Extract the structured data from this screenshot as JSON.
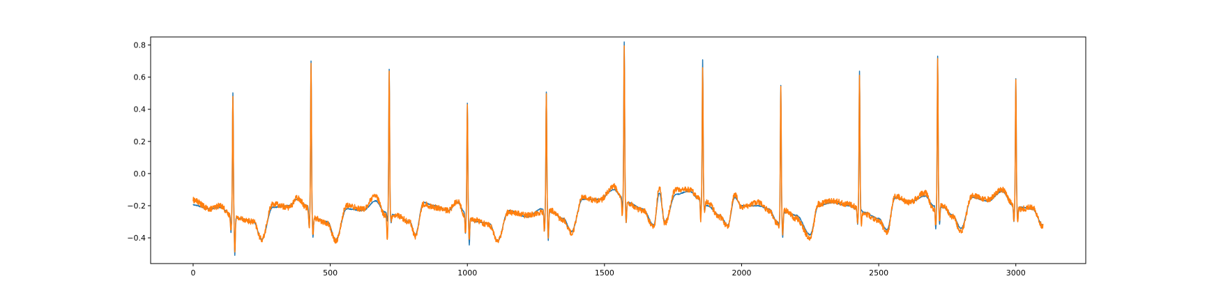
{
  "chart_data": {
    "type": "line",
    "title": "",
    "xlabel": "",
    "ylabel": "",
    "xlim": [
      -155,
      3255
    ],
    "ylim": [
      -0.56,
      0.85
    ],
    "xticks": [
      0,
      500,
      1000,
      1500,
      2000,
      2500,
      3000
    ],
    "xtick_labels": [
      "0",
      "500",
      "1000",
      "1500",
      "2000",
      "2500",
      "3000"
    ],
    "yticks": [
      -0.4,
      -0.2,
      0.0,
      0.2,
      0.4,
      0.6,
      0.8
    ],
    "ytick_labels": [
      "−0.4",
      "−0.2",
      "0.0",
      "0.2",
      "0.4",
      "0.6",
      "0.8"
    ],
    "grid": false,
    "legend": "none",
    "n_samples": 3100,
    "series": [
      {
        "color": "#1f77b4",
        "noise": 0.003,
        "peaks": [
          {
            "x": 145,
            "r": 0.5,
            "q": -0.37,
            "s": -0.5
          },
          {
            "x": 430,
            "r": 0.7,
            "q": -0.36,
            "s": -0.37
          },
          {
            "x": 715,
            "r": 0.65,
            "q": -0.3,
            "s": -0.3
          },
          {
            "x": 1000,
            "r": 0.44,
            "q": -0.38,
            "s": -0.43
          },
          {
            "x": 1288,
            "r": 0.51,
            "q": -0.36,
            "s": -0.41
          },
          {
            "x": 1572,
            "r": 0.82,
            "q": -0.23,
            "s": -0.29
          },
          {
            "x": 1858,
            "r": 0.71,
            "q": -0.27,
            "s": -0.22
          },
          {
            "x": 2143,
            "r": 0.55,
            "q": -0.31,
            "s": -0.42
          },
          {
            "x": 2430,
            "r": 0.64,
            "q": -0.32,
            "s": -0.22
          },
          {
            "x": 2715,
            "r": 0.73,
            "q": -0.35,
            "s": -0.31
          },
          {
            "x": 3000,
            "r": 0.59,
            "q": -0.3,
            "s": -0.29
          }
        ],
        "baseline": [
          [
            0,
            -0.195
          ],
          [
            60,
            -0.22
          ],
          [
            100,
            -0.21
          ],
          [
            135,
            -0.25
          ],
          [
            170,
            -0.28
          ],
          [
            220,
            -0.3
          ],
          [
            250,
            -0.41
          ],
          [
            290,
            -0.21
          ],
          [
            350,
            -0.2
          ],
          [
            380,
            -0.16
          ],
          [
            415,
            -0.2
          ],
          [
            445,
            -0.28
          ],
          [
            490,
            -0.3
          ],
          [
            520,
            -0.41
          ],
          [
            560,
            -0.22
          ],
          [
            620,
            -0.23
          ],
          [
            665,
            -0.17
          ],
          [
            700,
            -0.24
          ],
          [
            740,
            -0.26
          ],
          [
            790,
            -0.3
          ],
          [
            810,
            -0.38
          ],
          [
            840,
            -0.18
          ],
          [
            880,
            -0.2
          ],
          [
            930,
            -0.23
          ],
          [
            965,
            -0.18
          ],
          [
            990,
            -0.24
          ],
          [
            1030,
            -0.3
          ],
          [
            1080,
            -0.31
          ],
          [
            1110,
            -0.42
          ],
          [
            1150,
            -0.23
          ],
          [
            1220,
            -0.27
          ],
          [
            1270,
            -0.22
          ],
          [
            1305,
            -0.24
          ],
          [
            1350,
            -0.28
          ],
          [
            1380,
            -0.36
          ],
          [
            1420,
            -0.16
          ],
          [
            1480,
            -0.16
          ],
          [
            1535,
            -0.1
          ],
          [
            1560,
            -0.14
          ],
          [
            1585,
            -0.18
          ],
          [
            1640,
            -0.22
          ],
          [
            1680,
            -0.32
          ],
          [
            1700,
            -0.12
          ],
          [
            1720,
            -0.3
          ],
          [
            1760,
            -0.13
          ],
          [
            1810,
            -0.11
          ],
          [
            1845,
            -0.16
          ],
          [
            1875,
            -0.2
          ],
          [
            1920,
            -0.26
          ],
          [
            1950,
            -0.32
          ],
          [
            1975,
            -0.15
          ],
          [
            2000,
            -0.2
          ],
          [
            2060,
            -0.2
          ],
          [
            2100,
            -0.22
          ],
          [
            2130,
            -0.3
          ],
          [
            2160,
            -0.24
          ],
          [
            2200,
            -0.26
          ],
          [
            2250,
            -0.38
          ],
          [
            2280,
            -0.2
          ],
          [
            2330,
            -0.18
          ],
          [
            2390,
            -0.2
          ],
          [
            2420,
            -0.22
          ],
          [
            2445,
            -0.24
          ],
          [
            2500,
            -0.28
          ],
          [
            2530,
            -0.35
          ],
          [
            2560,
            -0.15
          ],
          [
            2610,
            -0.18
          ],
          [
            2670,
            -0.14
          ],
          [
            2700,
            -0.2
          ],
          [
            2735,
            -0.21
          ],
          [
            2770,
            -0.26
          ],
          [
            2800,
            -0.34
          ],
          [
            2840,
            -0.15
          ],
          [
            2900,
            -0.17
          ],
          [
            2950,
            -0.11
          ],
          [
            2990,
            -0.2
          ],
          [
            3020,
            -0.21
          ],
          [
            3060,
            -0.22
          ],
          [
            3099,
            -0.32
          ]
        ]
      },
      {
        "color": "#ff7f0e",
        "noise": 0.018,
        "peaks": [
          {
            "x": 145,
            "r": 0.49,
            "q": -0.36,
            "s": -0.48
          },
          {
            "x": 430,
            "r": 0.7,
            "q": -0.36,
            "s": -0.37
          },
          {
            "x": 715,
            "r": 0.65,
            "q": -0.42,
            "s": -0.3
          },
          {
            "x": 1000,
            "r": 0.43,
            "q": -0.38,
            "s": -0.4
          },
          {
            "x": 1288,
            "r": 0.51,
            "q": -0.36,
            "s": -0.39
          },
          {
            "x": 1572,
            "r": 0.8,
            "q": -0.29,
            "s": -0.28
          },
          {
            "x": 1858,
            "r": 0.67,
            "q": -0.31,
            "s": -0.22
          },
          {
            "x": 2143,
            "r": 0.54,
            "q": -0.33,
            "s": -0.4
          },
          {
            "x": 2430,
            "r": 0.6,
            "q": -0.32,
            "s": -0.31
          },
          {
            "x": 2715,
            "r": 0.72,
            "q": -0.33,
            "s": -0.3
          },
          {
            "x": 3000,
            "r": 0.58,
            "q": -0.3,
            "s": -0.3
          }
        ],
        "baseline": [
          [
            0,
            -0.165
          ],
          [
            60,
            -0.22
          ],
          [
            100,
            -0.2
          ],
          [
            135,
            -0.26
          ],
          [
            170,
            -0.28
          ],
          [
            220,
            -0.3
          ],
          [
            250,
            -0.41
          ],
          [
            290,
            -0.19
          ],
          [
            350,
            -0.21
          ],
          [
            380,
            -0.15
          ],
          [
            415,
            -0.21
          ],
          [
            445,
            -0.28
          ],
          [
            490,
            -0.31
          ],
          [
            520,
            -0.42
          ],
          [
            560,
            -0.2
          ],
          [
            620,
            -0.22
          ],
          [
            665,
            -0.14
          ],
          [
            700,
            -0.26
          ],
          [
            740,
            -0.26
          ],
          [
            790,
            -0.3
          ],
          [
            810,
            -0.39
          ],
          [
            840,
            -0.19
          ],
          [
            880,
            -0.21
          ],
          [
            930,
            -0.23
          ],
          [
            965,
            -0.17
          ],
          [
            990,
            -0.26
          ],
          [
            1030,
            -0.29
          ],
          [
            1080,
            -0.32
          ],
          [
            1110,
            -0.42
          ],
          [
            1150,
            -0.24
          ],
          [
            1220,
            -0.26
          ],
          [
            1270,
            -0.24
          ],
          [
            1305,
            -0.23
          ],
          [
            1350,
            -0.29
          ],
          [
            1380,
            -0.37
          ],
          [
            1420,
            -0.15
          ],
          [
            1480,
            -0.17
          ],
          [
            1535,
            -0.08
          ],
          [
            1560,
            -0.15
          ],
          [
            1585,
            -0.19
          ],
          [
            1640,
            -0.23
          ],
          [
            1680,
            -0.33
          ],
          [
            1700,
            -0.09
          ],
          [
            1720,
            -0.31
          ],
          [
            1760,
            -0.1
          ],
          [
            1810,
            -0.1
          ],
          [
            1845,
            -0.15
          ],
          [
            1875,
            -0.18
          ],
          [
            1920,
            -0.27
          ],
          [
            1950,
            -0.33
          ],
          [
            1975,
            -0.13
          ],
          [
            2000,
            -0.21
          ],
          [
            2060,
            -0.18
          ],
          [
            2100,
            -0.23
          ],
          [
            2130,
            -0.31
          ],
          [
            2160,
            -0.23
          ],
          [
            2200,
            -0.28
          ],
          [
            2250,
            -0.4
          ],
          [
            2280,
            -0.19
          ],
          [
            2330,
            -0.17
          ],
          [
            2390,
            -0.19
          ],
          [
            2420,
            -0.21
          ],
          [
            2445,
            -0.25
          ],
          [
            2500,
            -0.29
          ],
          [
            2530,
            -0.37
          ],
          [
            2560,
            -0.14
          ],
          [
            2610,
            -0.18
          ],
          [
            2670,
            -0.12
          ],
          [
            2700,
            -0.22
          ],
          [
            2735,
            -0.2
          ],
          [
            2770,
            -0.27
          ],
          [
            2800,
            -0.36
          ],
          [
            2840,
            -0.14
          ],
          [
            2900,
            -0.16
          ],
          [
            2950,
            -0.1
          ],
          [
            2990,
            -0.19
          ],
          [
            3020,
            -0.22
          ],
          [
            3060,
            -0.21
          ],
          [
            3099,
            -0.33
          ]
        ]
      }
    ]
  }
}
